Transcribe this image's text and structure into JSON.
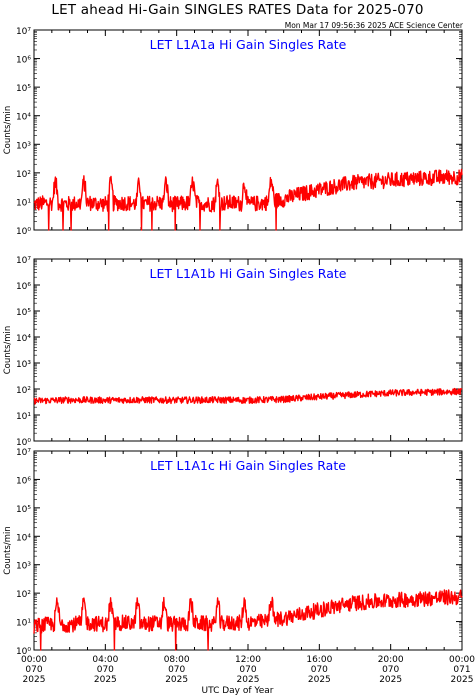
{
  "header": {
    "title": "LET ahead Hi-Gain SINGLES RATES Data for 2025-070",
    "timestamp": "Mon Mar 17 09:56:36 2025 ACE Science Center"
  },
  "x_axis_label": "UTC Day of Year",
  "colors": {
    "series": "#ff0000",
    "panel_title": "#0000ff",
    "axes": "#000000"
  },
  "chart_data": [
    {
      "type": "line",
      "title": "LET L1A1a Hi Gain Singles Rate",
      "ylabel": "Counts/min",
      "yscale": "log",
      "ylim": [
        1,
        10000000
      ],
      "xlim": [
        0,
        24
      ],
      "y_tick_labels": [
        "10⁰",
        "10¹",
        "10²",
        "10³",
        "10⁴",
        "10⁵",
        "10⁶",
        "10⁷"
      ],
      "series": [
        {
          "x": [
            0,
            1,
            2,
            3,
            4,
            5,
            6,
            7,
            8,
            9,
            10,
            11,
            12,
            13,
            14,
            15,
            16,
            17,
            18,
            19,
            20,
            21,
            22,
            23,
            24
          ],
          "y": [
            8,
            9,
            8,
            9,
            8,
            9,
            8,
            9,
            8,
            9,
            8,
            9,
            8,
            9,
            12,
            18,
            25,
            35,
            45,
            50,
            55,
            60,
            65,
            70,
            72
          ],
          "spikes": [
            1.2,
            2.8,
            4.3,
            5.9,
            7.4,
            8.9,
            10.3,
            11.8,
            13.3
          ]
        }
      ]
    },
    {
      "type": "line",
      "title": "LET L1A1b Hi Gain Singles Rate",
      "ylabel": "Counts/min",
      "yscale": "log",
      "ylim": [
        1,
        10000000
      ],
      "xlim": [
        0,
        24
      ],
      "y_tick_labels": [
        "10⁰",
        "10¹",
        "10²",
        "10³",
        "10⁴",
        "10⁵",
        "10⁶",
        "10⁷"
      ],
      "series": [
        {
          "x": [
            0,
            2,
            4,
            6,
            8,
            10,
            12,
            14,
            16,
            18,
            20,
            22,
            24
          ],
          "y": [
            35,
            38,
            37,
            38,
            37,
            38,
            37,
            40,
            50,
            60,
            70,
            75,
            80
          ]
        }
      ]
    },
    {
      "type": "line",
      "title": "LET L1A1c Hi Gain Singles Rate",
      "ylabel": "Counts/min",
      "yscale": "log",
      "ylim": [
        1,
        10000000
      ],
      "xlim": [
        0,
        24
      ],
      "y_tick_labels": [
        "10⁰",
        "10¹",
        "10²",
        "10³",
        "10⁴",
        "10⁵",
        "10⁶",
        "10⁷"
      ],
      "x_tick_labels": [
        [
          "00:00",
          "070",
          "2025"
        ],
        [
          "04:00",
          "070",
          "2025"
        ],
        [
          "08:00",
          "070",
          "2025"
        ],
        [
          "12:00",
          "070",
          "2025"
        ],
        [
          "16:00",
          "070",
          "2025"
        ],
        [
          "20:00",
          "070",
          "2025"
        ],
        [
          "00:00",
          "071",
          "2025"
        ]
      ],
      "series": [
        {
          "x": [
            0,
            1,
            2,
            3,
            4,
            5,
            6,
            7,
            8,
            9,
            10,
            11,
            12,
            13,
            14,
            15,
            16,
            17,
            18,
            19,
            20,
            21,
            22,
            23,
            24
          ],
          "y": [
            7,
            8,
            8,
            9,
            8,
            9,
            8,
            9,
            8,
            9,
            8,
            9,
            9,
            10,
            13,
            18,
            25,
            35,
            45,
            50,
            55,
            60,
            65,
            70,
            72
          ],
          "spikes": [
            1.3,
            2.8,
            4.3,
            5.8,
            7.3,
            8.8,
            10.3,
            11.8,
            13.3
          ]
        }
      ]
    }
  ]
}
